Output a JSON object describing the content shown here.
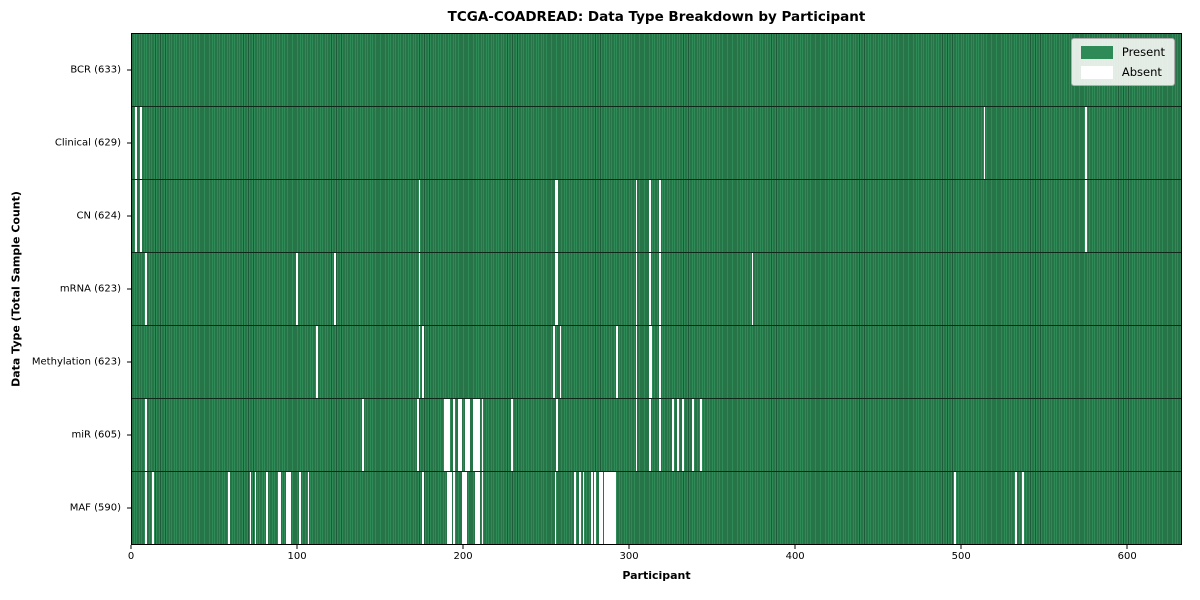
{
  "colors": {
    "present": "#2e8b57",
    "present_edge": "#1d5c38",
    "absent": "#ffffff",
    "row_separator": "#10281a",
    "axis": "#000000",
    "legend_border": "#adadad"
  },
  "chart_data": {
    "type": "heatmap",
    "title": "TCGA-COADREAD: Data Type Breakdown by Participant",
    "xlabel": "Participant",
    "ylabel": "Data Type (Total Sample Count)",
    "x_range": [
      0,
      633
    ],
    "n_participants": 633,
    "x_ticks": [
      0,
      100,
      200,
      300,
      400,
      500,
      600
    ],
    "grid": false,
    "legend": {
      "position": "upper right",
      "entries": [
        {
          "label": "Present",
          "color": "#2e8b57"
        },
        {
          "label": "Absent",
          "color": "#ffffff"
        }
      ]
    },
    "rows": [
      {
        "data_type": "BCR",
        "label": "BCR (633)",
        "present_count": 633,
        "absent_count": 0,
        "absent_participants": []
      },
      {
        "data_type": "Clinical",
        "label": "Clinical (629)",
        "present_count": 629,
        "absent_count": 4,
        "absent_participants": [
          2,
          5,
          514,
          575
        ]
      },
      {
        "data_type": "CN",
        "label": "CN (624)",
        "present_count": 624,
        "absent_count": 9,
        "absent_participants": [
          2,
          5,
          173,
          255,
          256,
          304,
          312,
          318,
          575
        ]
      },
      {
        "data_type": "mRNA",
        "label": "mRNA (623)",
        "present_count": 623,
        "absent_count": 10,
        "absent_participants": [
          8,
          99,
          122,
          173,
          255,
          256,
          304,
          312,
          318,
          374
        ]
      },
      {
        "data_type": "Methylation",
        "label": "Methylation (623)",
        "present_count": 623,
        "absent_count": 10,
        "absent_participants": [
          111,
          173,
          175,
          254,
          258,
          292,
          304,
          312,
          313,
          318
        ]
      },
      {
        "data_type": "miR",
        "label": "miR (605)",
        "present_count": 605,
        "absent_count": 28,
        "absent_participants": [
          8,
          139,
          172,
          188,
          189,
          190,
          191,
          194,
          197,
          198,
          201,
          202,
          203,
          206,
          207,
          208,
          209,
          211,
          229,
          256,
          304,
          312,
          318,
          326,
          329,
          332,
          338,
          343
        ]
      },
      {
        "data_type": "MAF",
        "label": "MAF (590)",
        "present_count": 590,
        "absent_count": 43,
        "absent_participants": [
          8,
          12,
          58,
          71,
          74,
          81,
          88,
          89,
          93,
          94,
          95,
          101,
          106,
          175,
          190,
          191,
          192,
          194,
          199,
          200,
          201,
          207,
          208,
          209,
          211,
          255,
          267,
          270,
          272,
          277,
          279,
          282,
          283,
          285,
          286,
          287,
          288,
          289,
          290,
          291,
          496,
          533,
          537
        ]
      }
    ]
  }
}
